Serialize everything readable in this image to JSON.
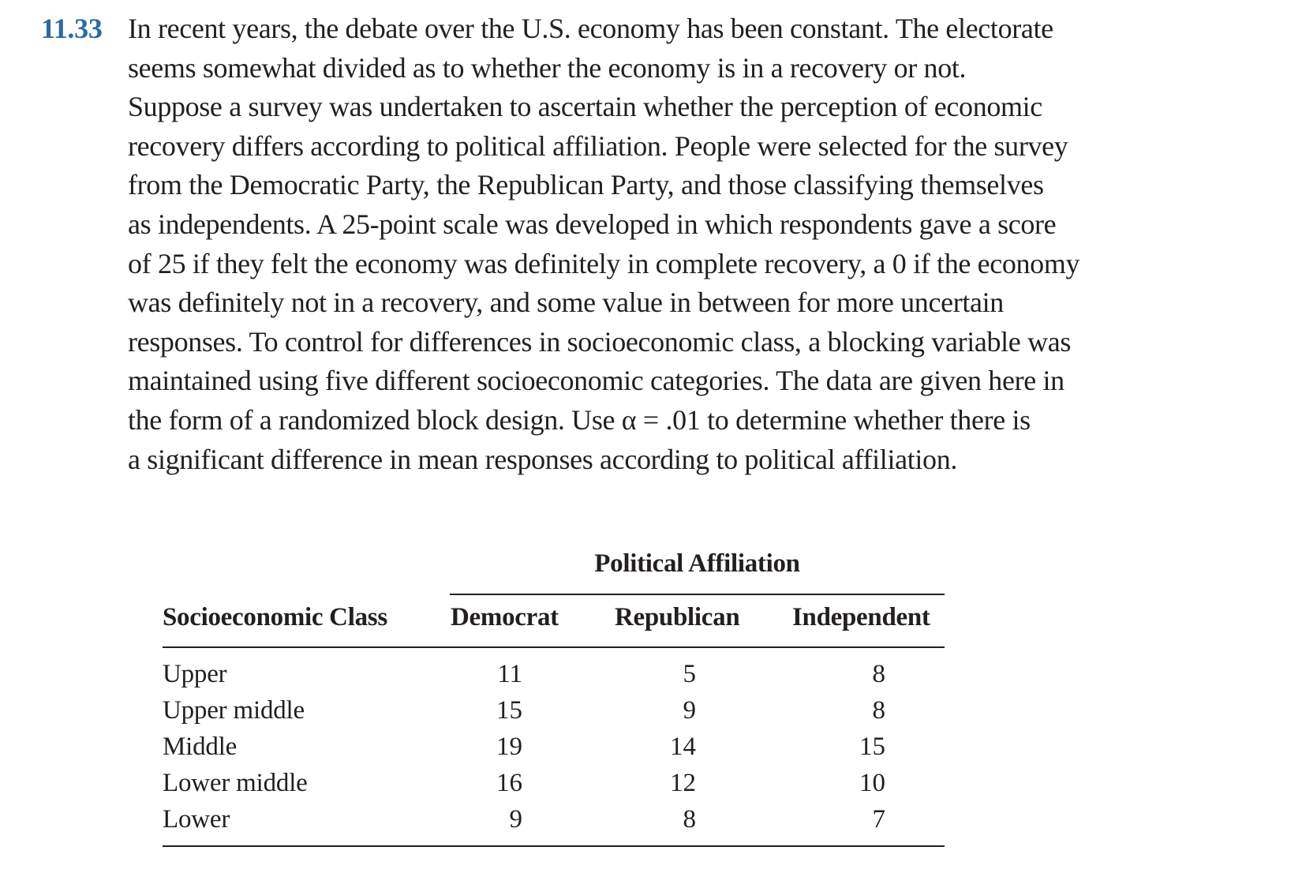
{
  "problem": {
    "number": "11.33",
    "lines": [
      "In recent years, the debate over the U.S. economy has been constant. The electorate",
      "seems somewhat divided as to whether the economy is in a recovery or not.",
      "Suppose a survey was undertaken to ascertain whether the perception of economic",
      "recovery differs according to political affiliation. People were selected for the survey",
      "from the Democratic Party, the Republican Party, and those classifying themselves",
      "as independents. A 25-point scale was developed in which respondents gave a score",
      "of 25 if they felt the economy was definitely in complete recovery, a 0 if the economy",
      "was definitely not in a recovery, and some value in between for more uncertain",
      "responses. To control for differences in socioeconomic class, a blocking variable was",
      "maintained using five different socioeconomic categories. The data are given here in",
      "the form of a randomized block design. Use α = .01 to determine whether there is",
      "a significant difference in mean responses according to political affiliation."
    ]
  },
  "table": {
    "group_heading": "Political Affiliation",
    "row_header": "Socioeconomic Class",
    "columns": [
      "Democrat",
      "Republican",
      "Independent"
    ],
    "rows": [
      {
        "label": "Upper",
        "values": [
          "11",
          "5",
          "8"
        ]
      },
      {
        "label": "Upper middle",
        "values": [
          "15",
          "9",
          "8"
        ]
      },
      {
        "label": "Middle",
        "values": [
          "19",
          "14",
          "15"
        ]
      },
      {
        "label": "Lower middle",
        "values": [
          "16",
          "12",
          "10"
        ]
      },
      {
        "label": "Lower",
        "values": [
          "9",
          "8",
          "7"
        ]
      }
    ]
  }
}
